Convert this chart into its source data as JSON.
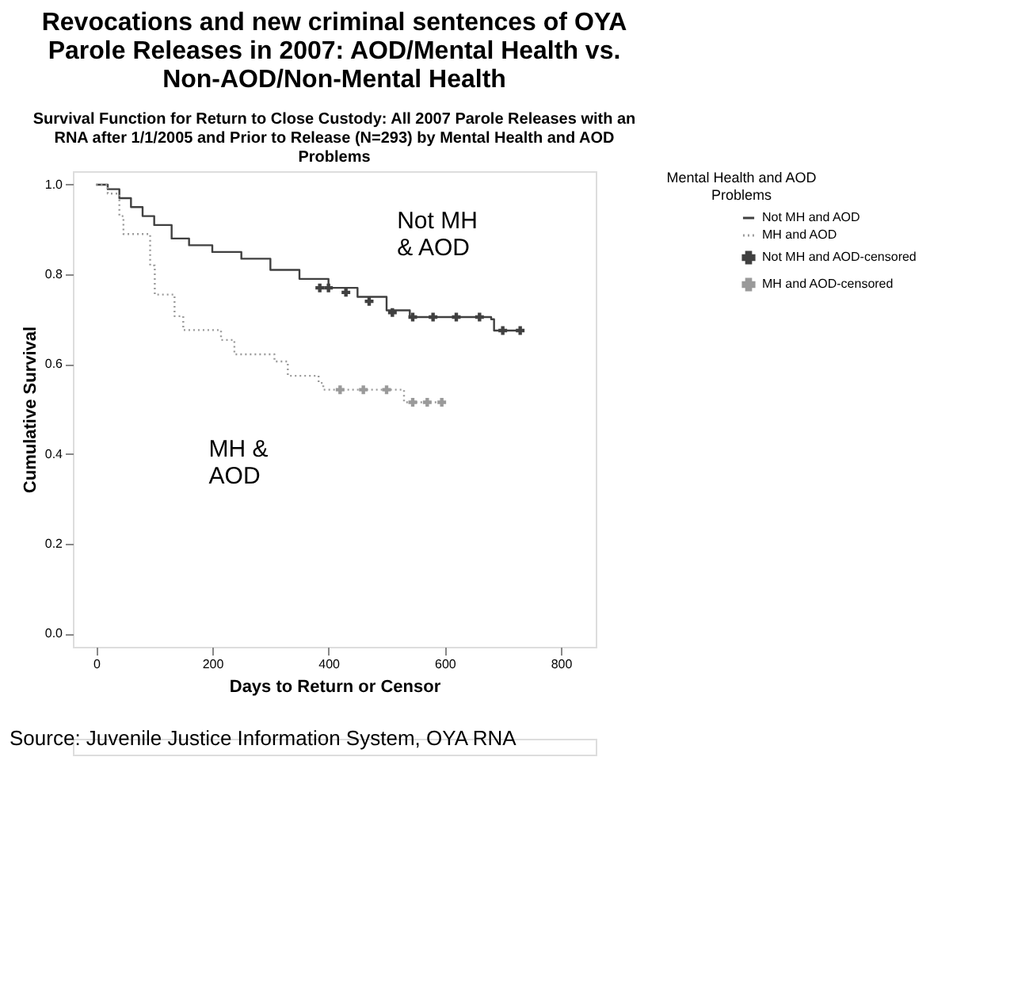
{
  "chart_data": {
    "type": "step",
    "title": "Revocations and new criminal sentences of OYA Parole Releases in 2007: AOD/Mental Health vs. Non-AOD/Non-Mental Health",
    "subtitle": "Survival Function for Return to Close Custody: All 2007 Parole Releases with an RNA after 1/1/2005 and Prior to Release (N=293) by Mental Health and AOD Problems",
    "xlabel": "Days to Return or Censor",
    "ylabel": "Cumulative Survival",
    "legend_title": "Mental Health and AOD Problems",
    "xlim": [
      -40,
      860
    ],
    "ylim": [
      -0.03,
      1.03
    ],
    "xticks": [
      0,
      200,
      400,
      600,
      800
    ],
    "yticks": [
      {
        "value": 0,
        "label": "0.0"
      },
      {
        "value": 0.2,
        "label": "0.2"
      },
      {
        "value": 0.4,
        "label": "0.4"
      },
      {
        "value": 0.6,
        "label": "0.6"
      },
      {
        "value": 0.8,
        "label": "0.8"
      },
      {
        "value": 1,
        "label": "1.0"
      }
    ],
    "grid": false,
    "legend": "top right",
    "series": [
      {
        "name": "Not MH and AOD",
        "color": "#404040",
        "line_style": "solid",
        "x": [
          0,
          20,
          40,
          60,
          80,
          100,
          130,
          160,
          200,
          250,
          300,
          350,
          400,
          450,
          500,
          540,
          600,
          680,
          685,
          735
        ],
        "values": [
          1.0,
          0.99,
          0.97,
          0.95,
          0.93,
          0.91,
          0.88,
          0.865,
          0.85,
          0.835,
          0.81,
          0.79,
          0.77,
          0.75,
          0.72,
          0.705,
          0.705,
          0.7,
          0.675,
          0.675
        ]
      },
      {
        "name": "MH and AOD",
        "color": "#9a9a9a",
        "line_style": "dotted",
        "x": [
          0,
          20,
          40,
          47,
          93,
          101,
          135,
          150,
          215,
          238,
          307,
          330,
          383,
          391,
          528,
          530,
          600
        ],
        "values": [
          1.0,
          0.98,
          0.93,
          0.89,
          0.82,
          0.755,
          0.707,
          0.676,
          0.654,
          0.622,
          0.606,
          0.574,
          0.558,
          0.543,
          0.543,
          0.515,
          0.515
        ]
      },
      {
        "name": "Not MH and AOD-censored",
        "type": "scatter",
        "marker": "cross",
        "color": "#404040",
        "x": [
          385,
          400,
          430,
          470,
          510,
          545,
          580,
          620,
          660,
          700,
          730
        ],
        "values": [
          0.77,
          0.77,
          0.76,
          0.74,
          0.715,
          0.705,
          0.705,
          0.705,
          0.705,
          0.675,
          0.675
        ]
      },
      {
        "name": "MH and AOD-censored",
        "type": "scatter",
        "marker": "cross",
        "color": "#9a9a9a",
        "x": [
          420,
          460,
          500,
          545,
          570,
          595
        ],
        "values": [
          0.543,
          0.543,
          0.543,
          0.515,
          0.515,
          0.515
        ]
      }
    ],
    "annotations": [
      "Not MH & AOD",
      "MH & AOD",
      "Source: Juvenile Justice Information System, OYA RNA"
    ]
  }
}
